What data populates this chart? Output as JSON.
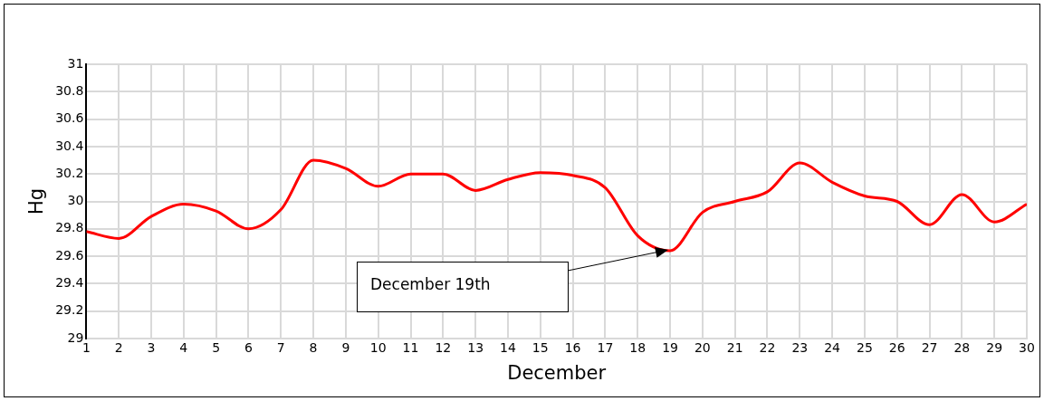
{
  "chart_data": {
    "type": "line",
    "xlabel": "December",
    "ylabel": "Hg",
    "x": [
      1,
      2,
      3,
      4,
      5,
      6,
      7,
      8,
      9,
      10,
      11,
      12,
      13,
      14,
      15,
      16,
      17,
      18,
      19,
      20,
      21,
      22,
      23,
      24,
      25,
      26,
      27,
      28,
      29,
      30
    ],
    "series": [
      {
        "color": "#ff0000",
        "values": [
          29.78,
          29.73,
          29.89,
          29.98,
          29.93,
          29.8,
          29.94,
          30.3,
          30.24,
          30.11,
          30.2,
          30.2,
          30.08,
          30.16,
          30.21,
          30.19,
          30.1,
          29.75,
          29.64,
          29.92,
          30.0,
          30.07,
          30.28,
          30.14,
          30.04,
          30.0,
          29.83,
          30.05,
          29.85,
          29.98
        ]
      }
    ],
    "xlim": [
      1,
      30
    ],
    "xticks": [
      1,
      2,
      3,
      4,
      5,
      6,
      7,
      8,
      9,
      10,
      11,
      12,
      13,
      14,
      15,
      16,
      17,
      18,
      19,
      20,
      21,
      22,
      23,
      24,
      25,
      26,
      27,
      28,
      29,
      30
    ],
    "ylim": [
      29,
      31
    ],
    "yticks": [
      29,
      29.2,
      29.4,
      29.6,
      29.8,
      30,
      30.2,
      30.4,
      30.6,
      30.8,
      31
    ],
    "grid": true,
    "legend": false,
    "marker": "none",
    "line_style": "solid",
    "annotations": [
      "December 19th"
    ]
  }
}
